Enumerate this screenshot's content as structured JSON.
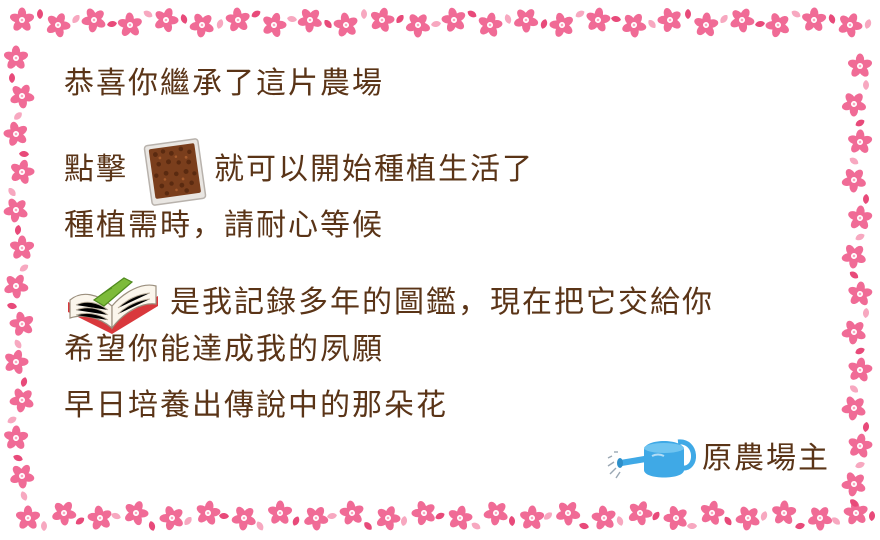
{
  "letter": {
    "line1": "恭喜你繼承了這片農場",
    "line2_prefix": "點擊",
    "line2_suffix": "就可以開始種植生活了",
    "line3": "種植需時，請耐心等候",
    "line4_suffix": "是我記錄多年的圖鑑，現在把它交給你",
    "line5": "希望你能達成我的夙願",
    "line6": "早日培養出傳說中的那朵花",
    "signature": "原農場主"
  },
  "icons": {
    "seed_packet": "seed-packet-icon",
    "encyclopedia": "open-book-icon",
    "watering_can": "watering-can-icon",
    "border_flower": "cherry-blossom-icon"
  },
  "colors": {
    "text": "#5a3417",
    "blossom_pink": "#f06b96",
    "blossom_light": "#f7a8c0",
    "blossom_center": "#ffffff",
    "can_blue": "#3fa9e6",
    "seed_brown": "#7a3e1c"
  }
}
